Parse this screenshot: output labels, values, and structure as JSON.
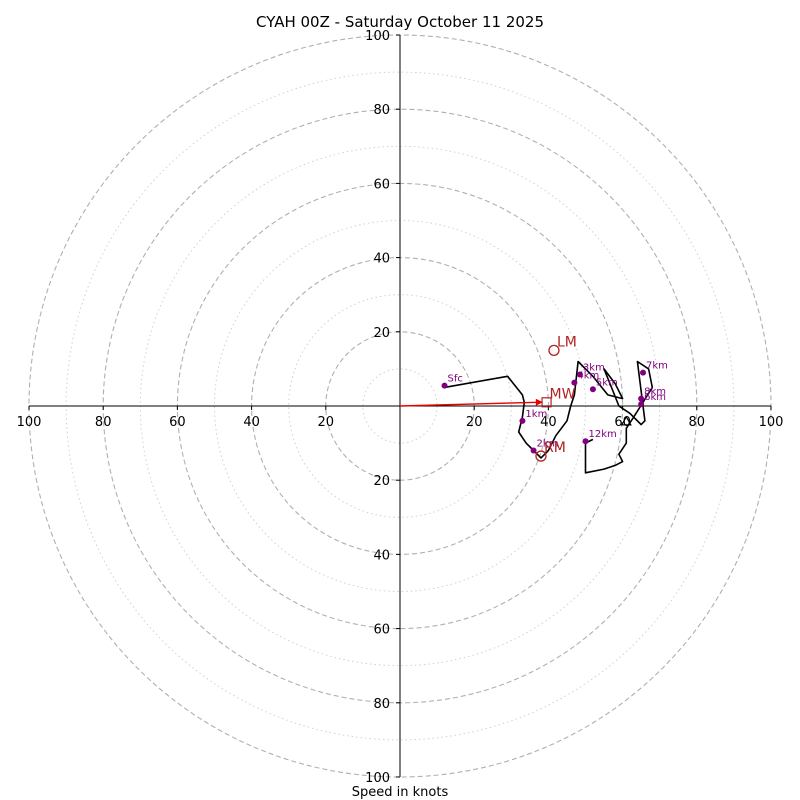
{
  "chart_data": {
    "type": "hodograph",
    "title": "CYAH 00Z - Saturday October 11 2025",
    "xlabel": "Speed in knots",
    "ylabel": "",
    "rings": [
      20,
      40,
      60,
      80,
      100
    ],
    "minor_rings": [
      10,
      30,
      50,
      70,
      90
    ],
    "max_speed": 100,
    "tick_labels": {
      "x": [
        "100",
        "80",
        "60",
        "40",
        "20",
        "20",
        "40",
        "60",
        "80",
        "100"
      ],
      "y": [
        "100",
        "80",
        "60",
        "40",
        "20",
        "20",
        "40",
        "60",
        "80",
        "100"
      ]
    },
    "tick_values": {
      "x": [
        -100,
        -80,
        -60,
        -40,
        -20,
        20,
        40,
        60,
        80,
        100
      ],
      "y": [
        100,
        80,
        60,
        40,
        20,
        -20,
        -40,
        -60,
        -80,
        -100
      ]
    },
    "trace": {
      "u": [
        12,
        29,
        33,
        33.5,
        33,
        32,
        34,
        36,
        38,
        40,
        42,
        45,
        46,
        47,
        48,
        52,
        56,
        60,
        58,
        55,
        57,
        59,
        62,
        65,
        66,
        64,
        67,
        68,
        63,
        61,
        61,
        59,
        60,
        58,
        55,
        50,
        50,
        52
      ],
      "v": [
        5,
        8,
        3,
        1,
        -3,
        -7,
        -10,
        -12,
        -14,
        -12,
        -8,
        -4,
        0,
        3,
        12,
        8,
        3,
        2,
        6,
        10,
        5,
        0,
        -2,
        -5,
        -4,
        12,
        10,
        5,
        -3,
        -6,
        -10,
        -13,
        -15,
        -16,
        -17,
        -18,
        -10,
        -9
      ]
    },
    "height_markers": [
      {
        "label": "Sfc",
        "u": 12,
        "v": 5.5
      },
      {
        "label": "1km",
        "u": 33,
        "v": -4
      },
      {
        "label": "2km",
        "u": 36,
        "v": -12
      },
      {
        "label": "3km",
        "u": 48.5,
        "v": 8.5
      },
      {
        "label": "4km",
        "u": 47,
        "v": 6.3
      },
      {
        "label": "5km",
        "u": 52,
        "v": 4.5
      },
      {
        "label": "6km",
        "u": 65,
        "v": 0.5
      },
      {
        "label": "7km",
        "u": 65.5,
        "v": 9
      },
      {
        "label": "8km",
        "u": 65,
        "v": 2
      },
      {
        "label": "12km",
        "u": 50,
        "v": -9.5
      }
    ],
    "storm_motions": [
      {
        "label": "LM",
        "u": 41.5,
        "v": 15
      },
      {
        "label": "RM",
        "u": 38,
        "v": -13.5
      }
    ],
    "mean_wind": {
      "label": "MW",
      "u": 39.5,
      "v": 1
    },
    "shear_vector": {
      "u": 38.5,
      "v": 1
    },
    "triangle_marker": {
      "u": 61,
      "v": -4
    },
    "colors": {
      "trace": "#000000",
      "height_marker": "#800080",
      "storm_motion": "#b22222",
      "shear_vector": "#e60000",
      "major_ring": "#b0b0b0",
      "minor_ring": "#d0d0d0",
      "axis": "#000000"
    }
  }
}
